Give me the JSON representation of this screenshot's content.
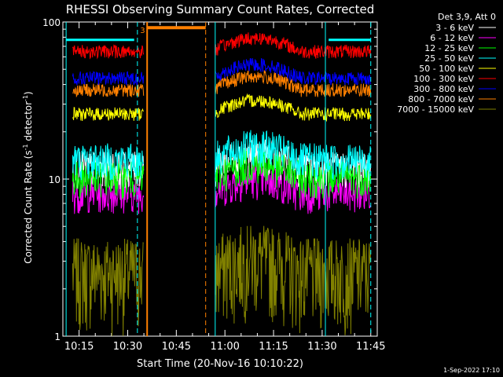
{
  "chart_data": {
    "type": "line",
    "title": "RHESSI Observing Summary Count Rates, Corrected",
    "xlabel": "Start Time (20-Nov-16 10:10:22)",
    "ylabel_main": "Corrected Count Rate (s",
    "ylabel_sup1": "-1",
    "ylabel_mid": " detector",
    "ylabel_sup2": "-1",
    "ylabel_end": ")",
    "yscale": "log",
    "ylim": [
      1,
      100
    ],
    "xlim_minutes": [
      "10:10",
      "11:47"
    ],
    "y_ticks": [
      "100",
      "10",
      "1"
    ],
    "x_ticks": [
      "10:15",
      "10:30",
      "10:45",
      "11:00",
      "11:15",
      "11:30",
      "11:45"
    ],
    "legend_header": "Det 3,9, Att 0",
    "legend_position": "right",
    "timestamp": "1-Sep-2022 17:10",
    "attenuator_label": "3",
    "gaps": [
      [
        "10:36",
        "10:56"
      ]
    ],
    "series": [
      {
        "name": "3 - 6 keV",
        "color": "#ffffff",
        "level": 11.5
      },
      {
        "name": "6 - 12 keV",
        "color": "#ff00ff",
        "level": 8
      },
      {
        "name": "12 - 25 keV",
        "color": "#00ff00",
        "level": 10
      },
      {
        "name": "25 - 50 keV",
        "color": "#00ffff",
        "level": 13
      },
      {
        "name": "50 - 100 keV",
        "color": "#ffff00",
        "level": 26
      },
      {
        "name": "100 - 300 keV",
        "color": "#ff0000",
        "level": 65
      },
      {
        "name": "300 - 800 keV",
        "color": "#0000ff",
        "level": 44
      },
      {
        "name": "800 - 7000 keV",
        "color": "#ff8000",
        "level": 37
      },
      {
        "name": "7000 - 15000 keV",
        "color": "#808000",
        "level": 2
      }
    ]
  }
}
